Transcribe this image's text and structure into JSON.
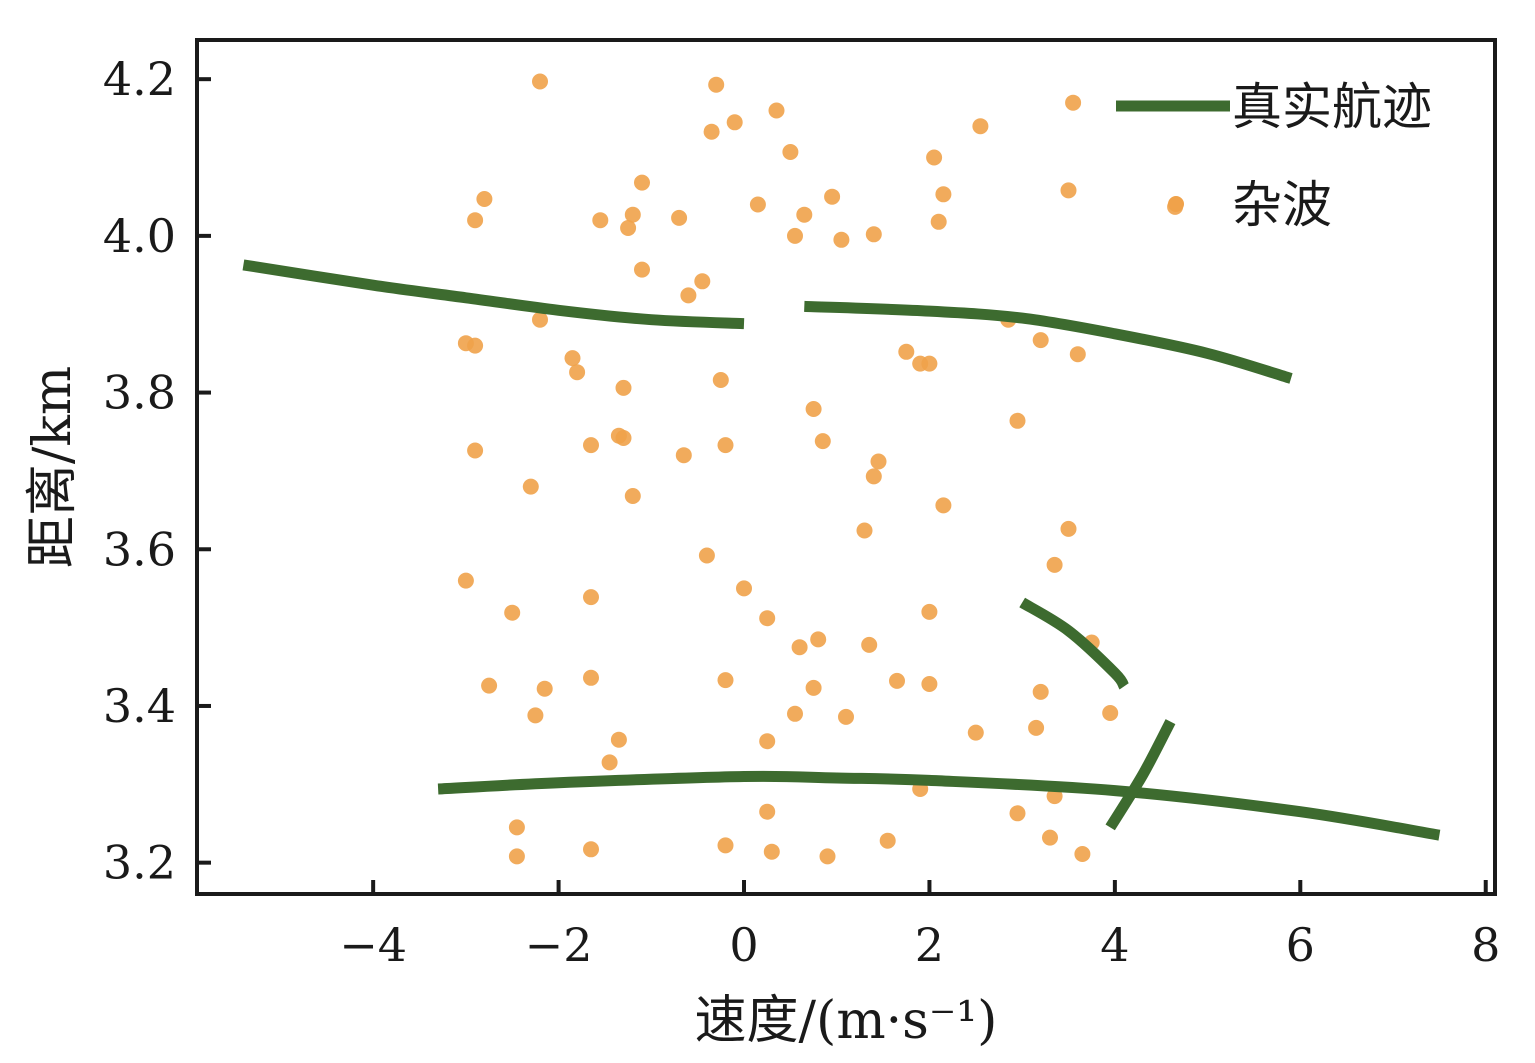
{
  "chart_data": {
    "type": "scatter",
    "xlabel": "速度/(m·s⁻¹)",
    "ylabel": "距离/km",
    "xlim": [
      -5.9,
      8.1
    ],
    "ylim": [
      3.16,
      4.25
    ],
    "xticks": [
      -4,
      -2,
      0,
      2,
      4,
      6,
      8
    ],
    "xtick_labels": [
      "−4",
      "−2",
      "0",
      "2",
      "4",
      "6",
      "8"
    ],
    "yticks": [
      3.2,
      3.4,
      3.6,
      3.8,
      4.0,
      4.2
    ],
    "ytick_labels": [
      "3.2",
      "3.4",
      "3.6",
      "3.8",
      "4.0",
      "4.2"
    ],
    "legend_position": "top-right",
    "grid": false,
    "tracks": {
      "name": "真实航迹",
      "color": "#3d6b2f",
      "segments": [
        [
          [
            -5.4,
            3.963
          ],
          [
            -4.0,
            3.937
          ],
          [
            -3.0,
            3.921
          ],
          [
            -2.0,
            3.905
          ],
          [
            -1.0,
            3.893
          ],
          [
            0.0,
            3.888
          ]
        ],
        [
          [
            0.65,
            3.91
          ],
          [
            2.0,
            3.904
          ],
          [
            3.0,
            3.895
          ],
          [
            4.0,
            3.875
          ],
          [
            5.0,
            3.85
          ],
          [
            5.9,
            3.818
          ]
        ],
        [
          [
            3.0,
            3.532
          ],
          [
            3.5,
            3.496
          ],
          [
            4.0,
            3.442
          ],
          [
            4.1,
            3.425
          ]
        ],
        [
          [
            -3.3,
            3.294
          ],
          [
            -2.0,
            3.302
          ],
          [
            0.0,
            3.31
          ],
          [
            1.0,
            3.308
          ],
          [
            2.0,
            3.305
          ],
          [
            4.0,
            3.292
          ],
          [
            6.0,
            3.265
          ],
          [
            7.5,
            3.235
          ]
        ],
        [
          [
            3.95,
            3.245
          ],
          [
            4.3,
            3.312
          ],
          [
            4.6,
            3.38
          ]
        ]
      ]
    },
    "clutter": {
      "name": "杂波",
      "color": "#f0a24a",
      "points": [
        [
          -2.2,
          4.197
        ],
        [
          -0.3,
          4.193
        ],
        [
          0.35,
          4.16
        ],
        [
          3.55,
          4.17
        ],
        [
          -0.1,
          4.145
        ],
        [
          -0.35,
          4.133
        ],
        [
          2.55,
          4.14
        ],
        [
          0.5,
          4.107
        ],
        [
          2.05,
          4.1
        ],
        [
          -1.1,
          4.068
        ],
        [
          3.5,
          4.058
        ],
        [
          -2.8,
          4.047
        ],
        [
          0.95,
          4.05
        ],
        [
          2.15,
          4.053
        ],
        [
          0.15,
          4.04
        ],
        [
          4.65,
          4.037
        ],
        [
          -2.9,
          4.02
        ],
        [
          -1.55,
          4.02
        ],
        [
          -1.2,
          4.027
        ],
        [
          -0.7,
          4.023
        ],
        [
          0.65,
          4.027
        ],
        [
          2.1,
          4.018
        ],
        [
          -1.25,
          4.01
        ],
        [
          0.55,
          4.0
        ],
        [
          1.05,
          3.995
        ],
        [
          1.4,
          4.002
        ],
        [
          -1.1,
          3.957
        ],
        [
          -0.45,
          3.942
        ],
        [
          -0.6,
          3.924
        ],
        [
          -2.2,
          3.893
        ],
        [
          2.85,
          3.893
        ],
        [
          -3.0,
          3.863
        ],
        [
          -2.9,
          3.86
        ],
        [
          3.2,
          3.867
        ],
        [
          -1.85,
          3.844
        ],
        [
          1.75,
          3.852
        ],
        [
          3.6,
          3.849
        ],
        [
          1.9,
          3.837
        ],
        [
          2.0,
          3.837
        ],
        [
          -1.8,
          3.826
        ],
        [
          -1.3,
          3.806
        ],
        [
          -0.25,
          3.816
        ],
        [
          0.75,
          3.779
        ],
        [
          2.95,
          3.764
        ],
        [
          -1.35,
          3.745
        ],
        [
          -1.3,
          3.742
        ],
        [
          -1.65,
          3.733
        ],
        [
          -0.2,
          3.733
        ],
        [
          0.85,
          3.738
        ],
        [
          -2.9,
          3.726
        ],
        [
          -0.65,
          3.72
        ],
        [
          1.45,
          3.712
        ],
        [
          1.4,
          3.693
        ],
        [
          -2.3,
          3.68
        ],
        [
          -1.2,
          3.668
        ],
        [
          2.15,
          3.656
        ],
        [
          1.3,
          3.624
        ],
        [
          3.5,
          3.626
        ],
        [
          -0.4,
          3.592
        ],
        [
          3.35,
          3.58
        ],
        [
          -3.0,
          3.56
        ],
        [
          0.0,
          3.55
        ],
        [
          -1.65,
          3.539
        ],
        [
          -2.5,
          3.519
        ],
        [
          2.0,
          3.52
        ],
        [
          0.25,
          3.512
        ],
        [
          0.8,
          3.485
        ],
        [
          0.6,
          3.475
        ],
        [
          1.35,
          3.478
        ],
        [
          3.75,
          3.481
        ],
        [
          -1.65,
          3.436
        ],
        [
          -0.2,
          3.433
        ],
        [
          1.65,
          3.432
        ],
        [
          2.0,
          3.428
        ],
        [
          -2.75,
          3.426
        ],
        [
          -2.15,
          3.422
        ],
        [
          0.75,
          3.423
        ],
        [
          3.2,
          3.418
        ],
        [
          -2.25,
          3.388
        ],
        [
          0.55,
          3.39
        ],
        [
          1.1,
          3.386
        ],
        [
          3.95,
          3.391
        ],
        [
          3.15,
          3.372
        ],
        [
          2.5,
          3.366
        ],
        [
          -1.35,
          3.357
        ],
        [
          0.25,
          3.355
        ],
        [
          -1.45,
          3.328
        ],
        [
          1.9,
          3.294
        ],
        [
          3.35,
          3.285
        ],
        [
          0.25,
          3.265
        ],
        [
          2.95,
          3.263
        ],
        [
          -2.45,
          3.245
        ],
        [
          3.3,
          3.232
        ],
        [
          1.55,
          3.228
        ],
        [
          -0.2,
          3.222
        ],
        [
          -1.65,
          3.217
        ],
        [
          0.3,
          3.214
        ],
        [
          -2.45,
          3.208
        ],
        [
          0.9,
          3.208
        ],
        [
          3.65,
          3.211
        ]
      ]
    }
  }
}
